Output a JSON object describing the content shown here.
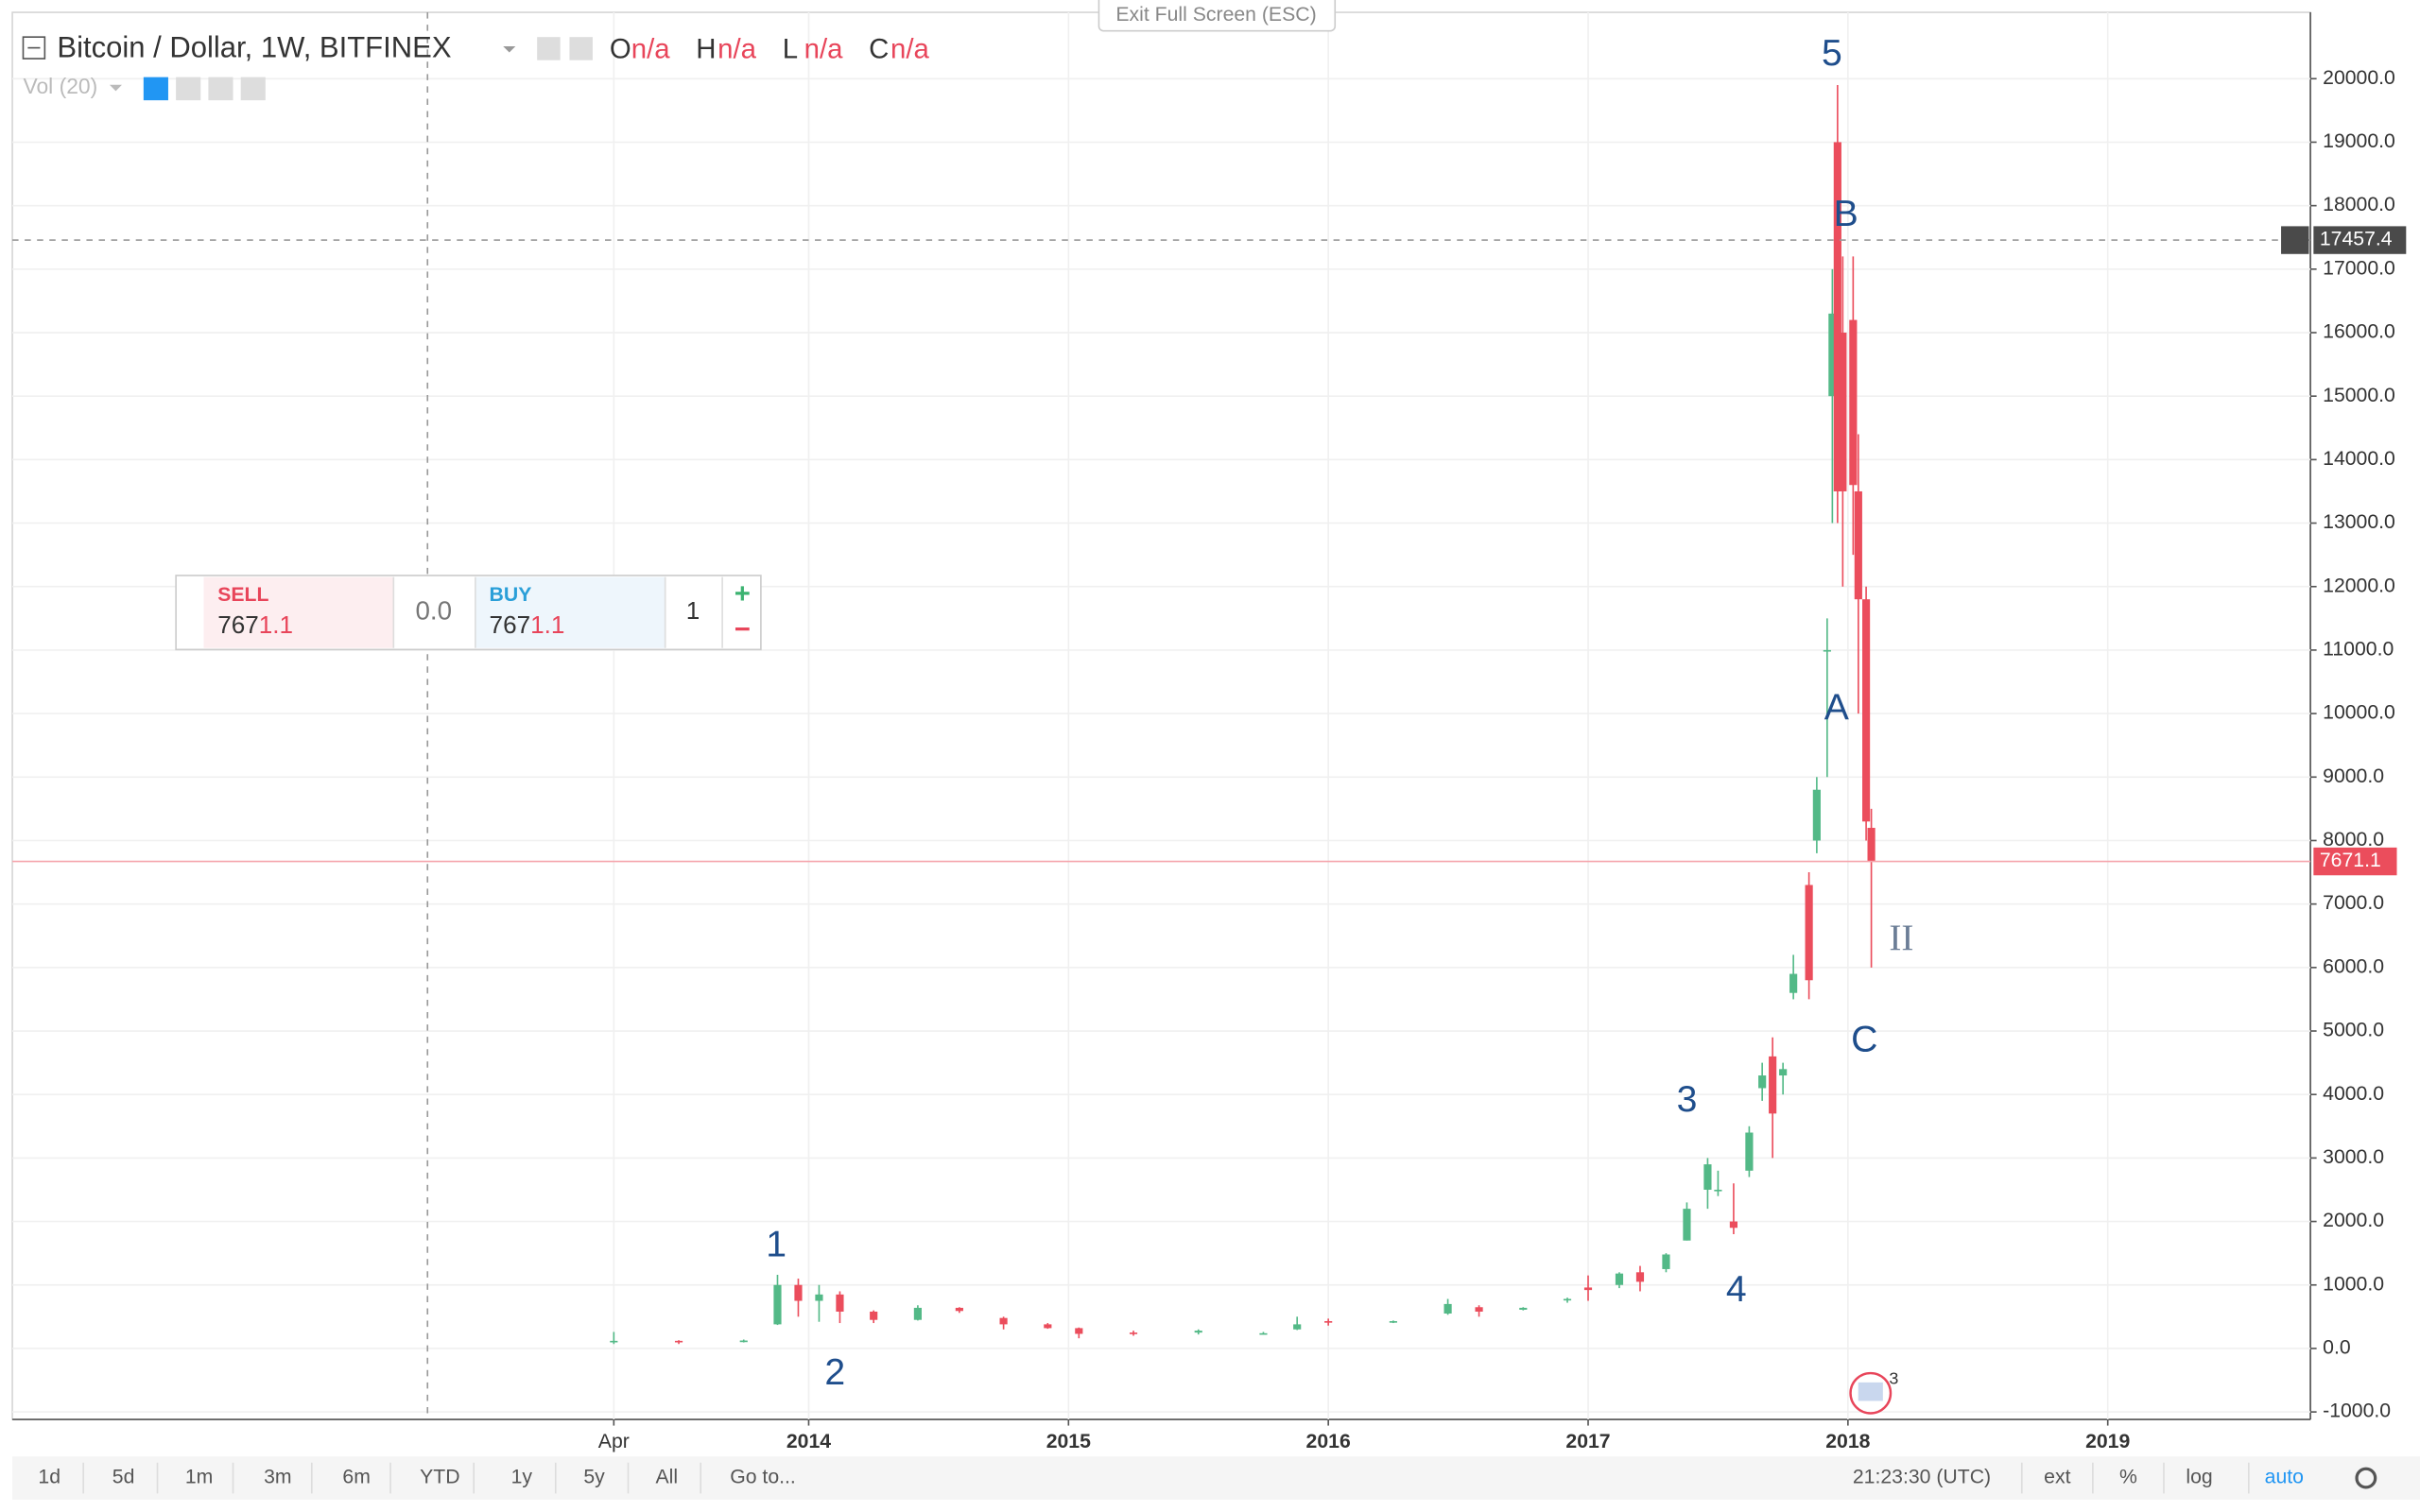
{
  "exit_fullscreen": "Exit Full Screen (ESC)",
  "legend": {
    "symbol": "Bitcoin / Dollar, 1W, BITFINEX",
    "fields": [
      {
        "key": "O",
        "value": "n/a"
      },
      {
        "key": "H",
        "value": "n/a"
      },
      {
        "key": "L",
        "value": "n/a"
      },
      {
        "key": "C",
        "value": "n/a"
      }
    ],
    "volume": "Vol (20)"
  },
  "order_widget": {
    "sell": "SELL",
    "sell_main": "767",
    "sell_tail": "1.1",
    "spread": "0.0",
    "buy": "BUY",
    "buy_main": "767",
    "buy_tail": "1.1",
    "quantity": "1",
    "plus": "+",
    "minus": "−"
  },
  "toolbar": {
    "ranges": [
      "1d",
      "5d",
      "1m",
      "3m",
      "6m",
      "YTD",
      "1y",
      "5y",
      "All"
    ],
    "goto": "Go to...",
    "clock": "21:23:30 (UTC)",
    "options": [
      "ext",
      "%",
      "log",
      "auto"
    ]
  },
  "events_badge": "3",
  "chart_data": {
    "type": "candlestick",
    "x": [
      2013.25,
      2013.5,
      2013.75,
      2013.88,
      2013.96,
      2014.04,
      2014.12,
      2014.25,
      2014.42,
      2014.58,
      2014.75,
      2014.92,
      2015.04,
      2015.25,
      2015.5,
      2015.75,
      2015.88,
      2016.0,
      2016.25,
      2016.46,
      2016.58,
      2016.75,
      2016.92,
      2017.0,
      2017.12,
      2017.2,
      2017.3,
      2017.38,
      2017.46,
      2017.5,
      2017.56,
      2017.62,
      2017.67,
      2017.71,
      2017.75,
      2017.79,
      2017.85,
      2017.88,
      2017.92,
      2017.94,
      2017.96,
      2017.98,
      2018.02,
      2018.04,
      2018.07,
      2018.09
    ],
    "open": [
      100,
      120,
      100,
      380,
      1000,
      750,
      850,
      580,
      450,
      640,
      480,
      380,
      320,
      250,
      250,
      240,
      300,
      430,
      420,
      550,
      650,
      610,
      760,
      960,
      1000,
      1200,
      1250,
      1700,
      2500,
      2500,
      2000,
      2800,
      4100,
      4600,
      4300,
      5600,
      7300,
      8000,
      11000,
      15000,
      19000,
      16000,
      16200,
      13500,
      11800,
      8200
    ],
    "high": [
      260,
      130,
      140,
      1160,
      1100,
      1000,
      900,
      600,
      680,
      650,
      500,
      400,
      330,
      280,
      300,
      260,
      500,
      470,
      440,
      780,
      680,
      650,
      800,
      1150,
      1200,
      1300,
      1500,
      2300,
      3000,
      2800,
      2600,
      3500,
      4500,
      4900,
      4500,
      6200,
      7500,
      9000,
      11500,
      17000,
      19900,
      17200,
      17200,
      14400,
      12000,
      8500
    ],
    "low": [
      70,
      70,
      95,
      370,
      500,
      420,
      400,
      400,
      440,
      560,
      300,
      310,
      160,
      200,
      220,
      220,
      290,
      360,
      400,
      530,
      500,
      600,
      720,
      750,
      950,
      900,
      1200,
      1700,
      2200,
      2400,
      1800,
      2700,
      3900,
      3000,
      4000,
      5500,
      5500,
      7800,
      9000,
      13000,
      13000,
      12000,
      12500,
      10000,
      8000,
      6000
    ],
    "close": [
      120,
      100,
      125,
      1000,
      750,
      850,
      580,
      450,
      640,
      590,
      380,
      320,
      230,
      240,
      280,
      240,
      380,
      410,
      430,
      700,
      580,
      640,
      780,
      920,
      1180,
      1050,
      1480,
      2200,
      2900,
      2500,
      1900,
      3400,
      4300,
      3700,
      4400,
      5900,
      5800,
      8800,
      11000,
      16300,
      13500,
      13500,
      13600,
      11800,
      8300,
      7671.1
    ],
    "up_color": "#53b987",
    "down_color": "#eb4d5c",
    "last_price": 7671.1,
    "crosshair_price": 17457.4,
    "annotations": [
      "1",
      "2",
      "3",
      "4",
      "5",
      "A",
      "B",
      "C",
      "II"
    ],
    "xlim": [
      2010.935,
      2019.78
    ],
    "xticks": [
      {
        "value": 2013.25,
        "label": "Apr"
      },
      2014,
      2015,
      2016,
      2017,
      2018,
      2019
    ],
    "ylim": [
      -1118,
      21045
    ],
    "yticks": [
      {
        "value": -1000,
        "label": "-1000.0"
      },
      {
        "value": 0,
        "label": "0.0"
      },
      {
        "value": 1000,
        "label": "1000.0"
      },
      {
        "value": 2000,
        "label": "2000.0"
      },
      {
        "value": 3000,
        "label": "3000.0"
      },
      {
        "value": 4000,
        "label": "4000.0"
      },
      {
        "value": 5000,
        "label": "5000.0"
      },
      {
        "value": 6000,
        "label": "6000.0"
      },
      {
        "value": 7000,
        "label": "7000.0"
      },
      {
        "value": 8000,
        "label": "8000.0"
      },
      {
        "value": 9000,
        "label": "9000.0"
      },
      {
        "value": 10000,
        "label": "10000.0"
      },
      {
        "value": 11000,
        "label": "11000.0"
      },
      {
        "value": 12000,
        "label": "12000.0"
      },
      {
        "value": 13000,
        "label": "13000.0"
      },
      {
        "value": 14000,
        "label": "14000.0"
      },
      {
        "value": 15000,
        "label": "15000.0"
      },
      {
        "value": 16000,
        "label": "16000.0"
      },
      {
        "value": 17000,
        "label": "17000.0"
      },
      {
        "value": 18000,
        "label": "18000.0"
      },
      {
        "value": 19000,
        "label": "19000.0"
      },
      {
        "value": 20000,
        "label": "20000.0"
      }
    ],
    "grid": true
  }
}
